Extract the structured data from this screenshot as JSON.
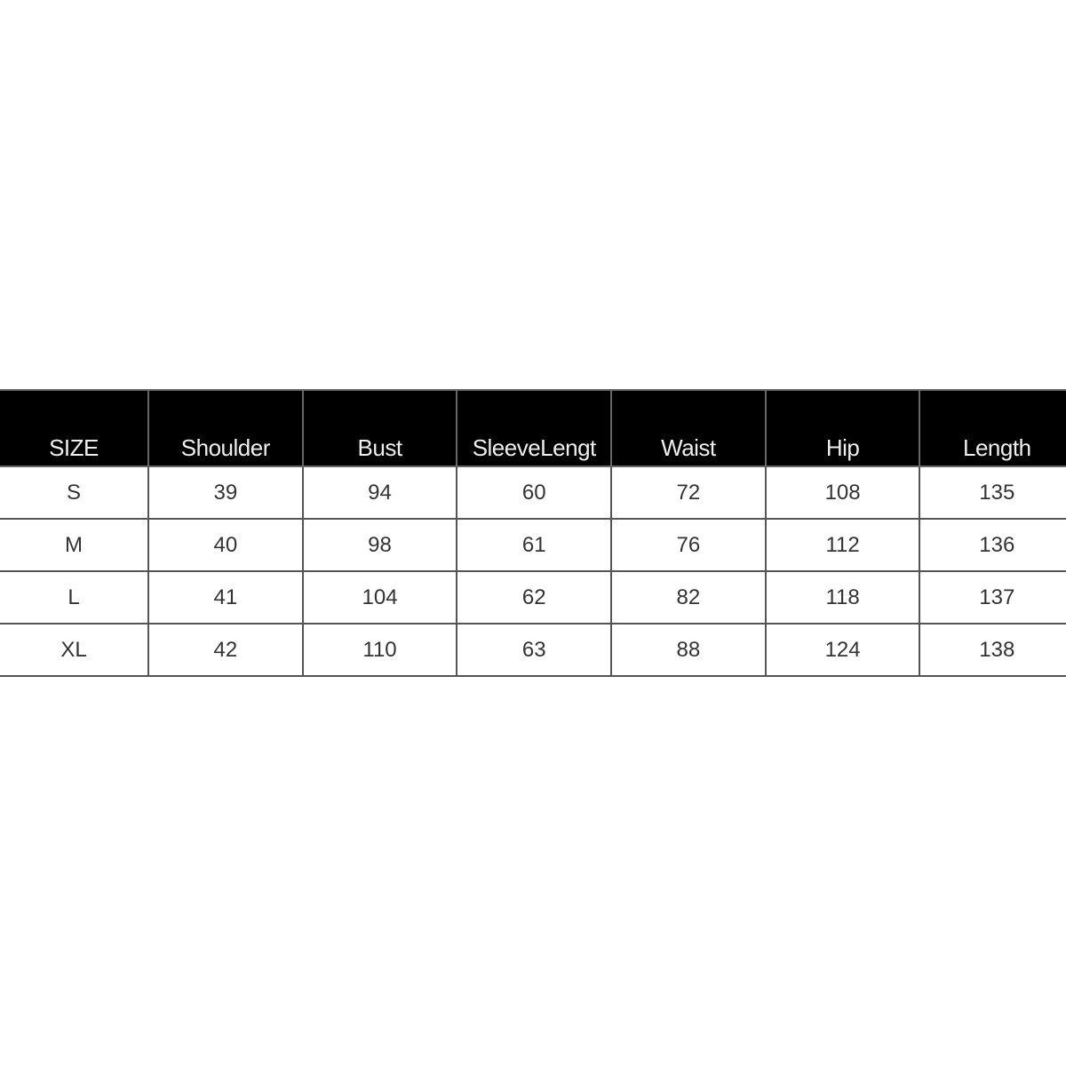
{
  "table": {
    "headers": [
      "SIZE",
      "Shoulder",
      "Bust",
      "SleeveLengt",
      "Waist",
      "Hip",
      "Length"
    ],
    "rows": [
      [
        "S",
        "39",
        "94",
        "60",
        "72",
        "108",
        "135"
      ],
      [
        "M",
        "40",
        "98",
        "61",
        "76",
        "112",
        "136"
      ],
      [
        "L",
        "41",
        "104",
        "62",
        "82",
        "118",
        "137"
      ],
      [
        "XL",
        "42",
        "110",
        "63",
        "88",
        "124",
        "138"
      ]
    ]
  }
}
